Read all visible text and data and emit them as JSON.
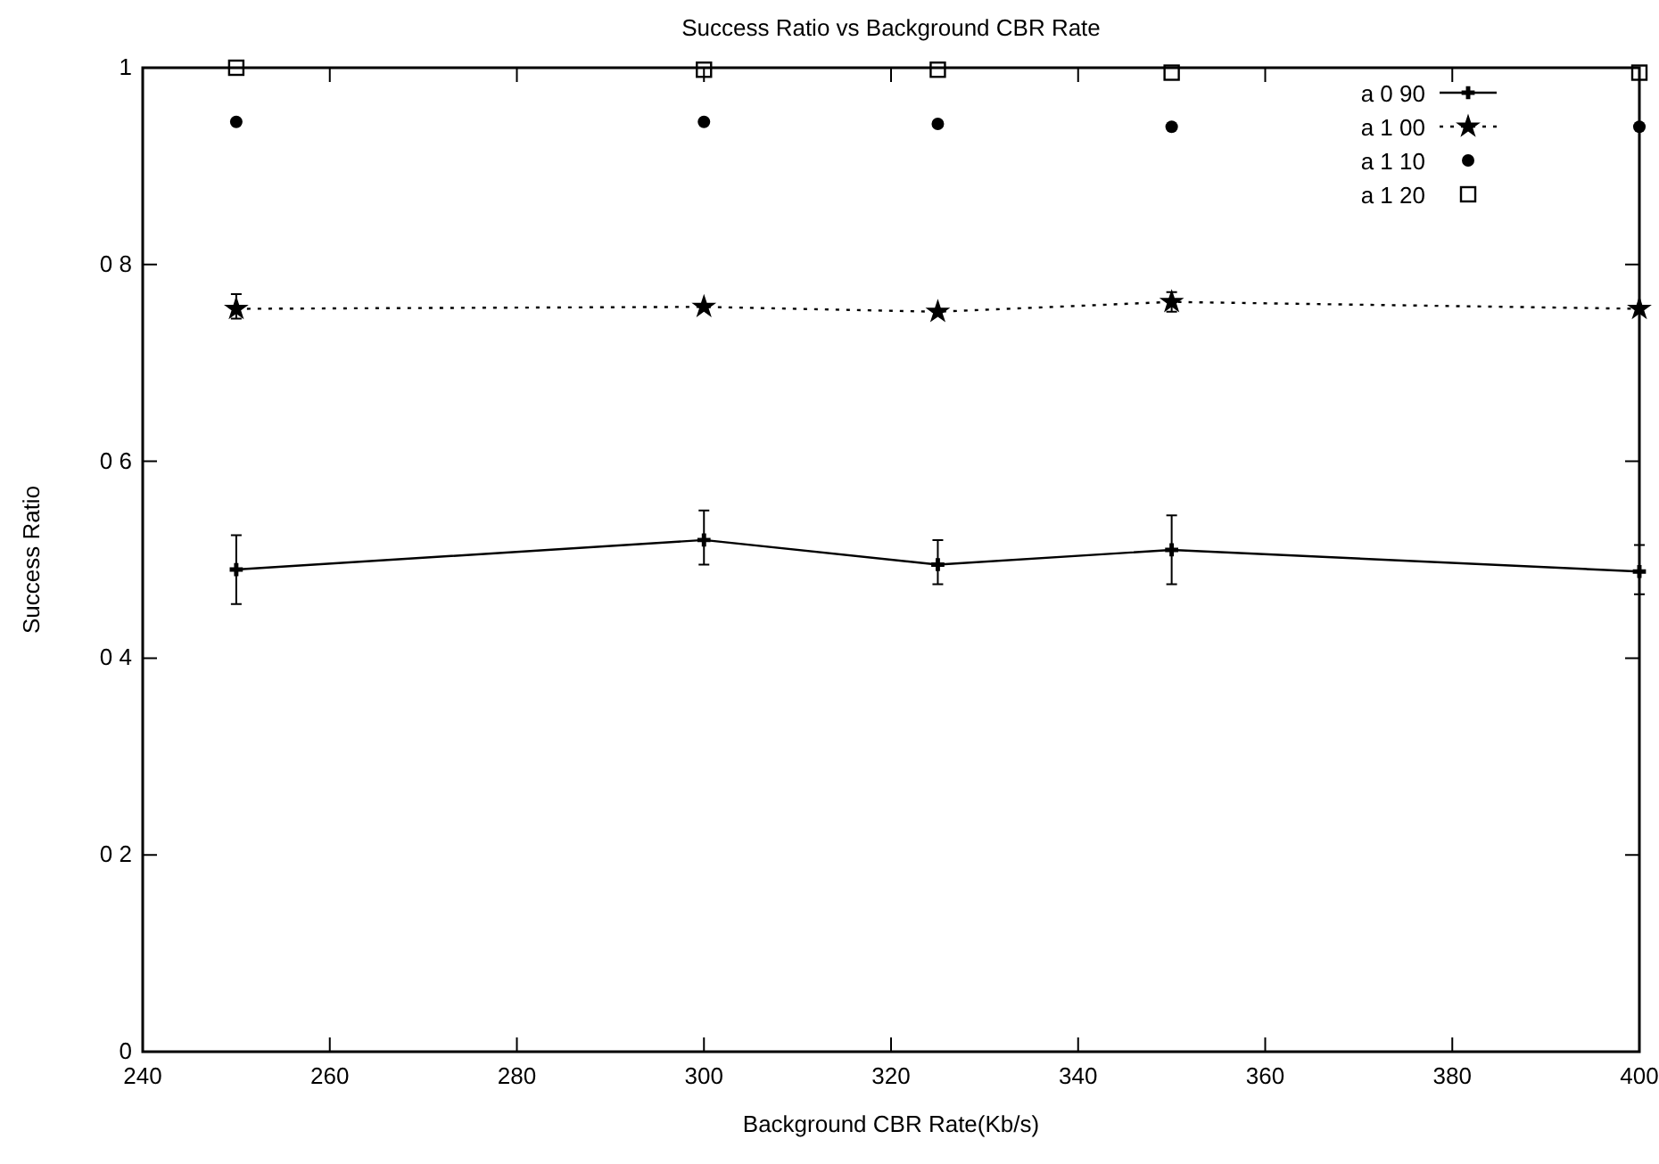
{
  "chart_data": {
    "type": "line",
    "title": "Success Ratio vs  Background CBR Rate",
    "xlabel": "Background CBR Rate(Kb/s)",
    "ylabel": "Success Ratio",
    "x": [
      250,
      300,
      325,
      350,
      400
    ],
    "xlim": [
      240,
      400
    ],
    "xticks": [
      240,
      260,
      280,
      300,
      320,
      340,
      360,
      380,
      400
    ],
    "ylim": [
      0,
      1
    ],
    "yticks": [
      0,
      {
        "value": 0.2,
        "label": "0 2"
      },
      {
        "value": 0.4,
        "label": "0 4"
      },
      {
        "value": 0.6,
        "label": "0 6"
      },
      {
        "value": 0.8,
        "label": "0 8"
      },
      1
    ],
    "legend": "top right",
    "series": [
      {
        "name": "a 0 90",
        "color": "#000000",
        "type": "line",
        "marker": "cross",
        "line_style": "solid",
        "values": [
          0.49,
          0.52,
          0.495,
          0.51,
          0.488
        ],
        "errors": [
          [
            0.455,
            0.525
          ],
          [
            0.495,
            0.55
          ],
          [
            0.475,
            0.52
          ],
          [
            0.475,
            0.545
          ],
          [
            0.465,
            0.515
          ]
        ]
      },
      {
        "name": "a 1 00",
        "color": "#000000",
        "type": "line",
        "marker": "star",
        "line_style": "dotted",
        "values": [
          0.755,
          0.757,
          0.752,
          0.762,
          0.755
        ],
        "errors": [
          [
            0.745,
            0.77
          ],
          null,
          null,
          [
            0.752,
            0.772
          ],
          null
        ]
      },
      {
        "name": "a 1 10",
        "color": "#000000",
        "type": "scatter",
        "marker": "circle",
        "values": [
          0.945,
          0.945,
          0.943,
          0.94,
          0.94
        ]
      },
      {
        "name": "a 1 20",
        "color": "#000000",
        "type": "scatter",
        "marker": "square",
        "values": [
          1.0,
          0.998,
          0.998,
          0.995,
          0.995
        ]
      }
    ]
  }
}
